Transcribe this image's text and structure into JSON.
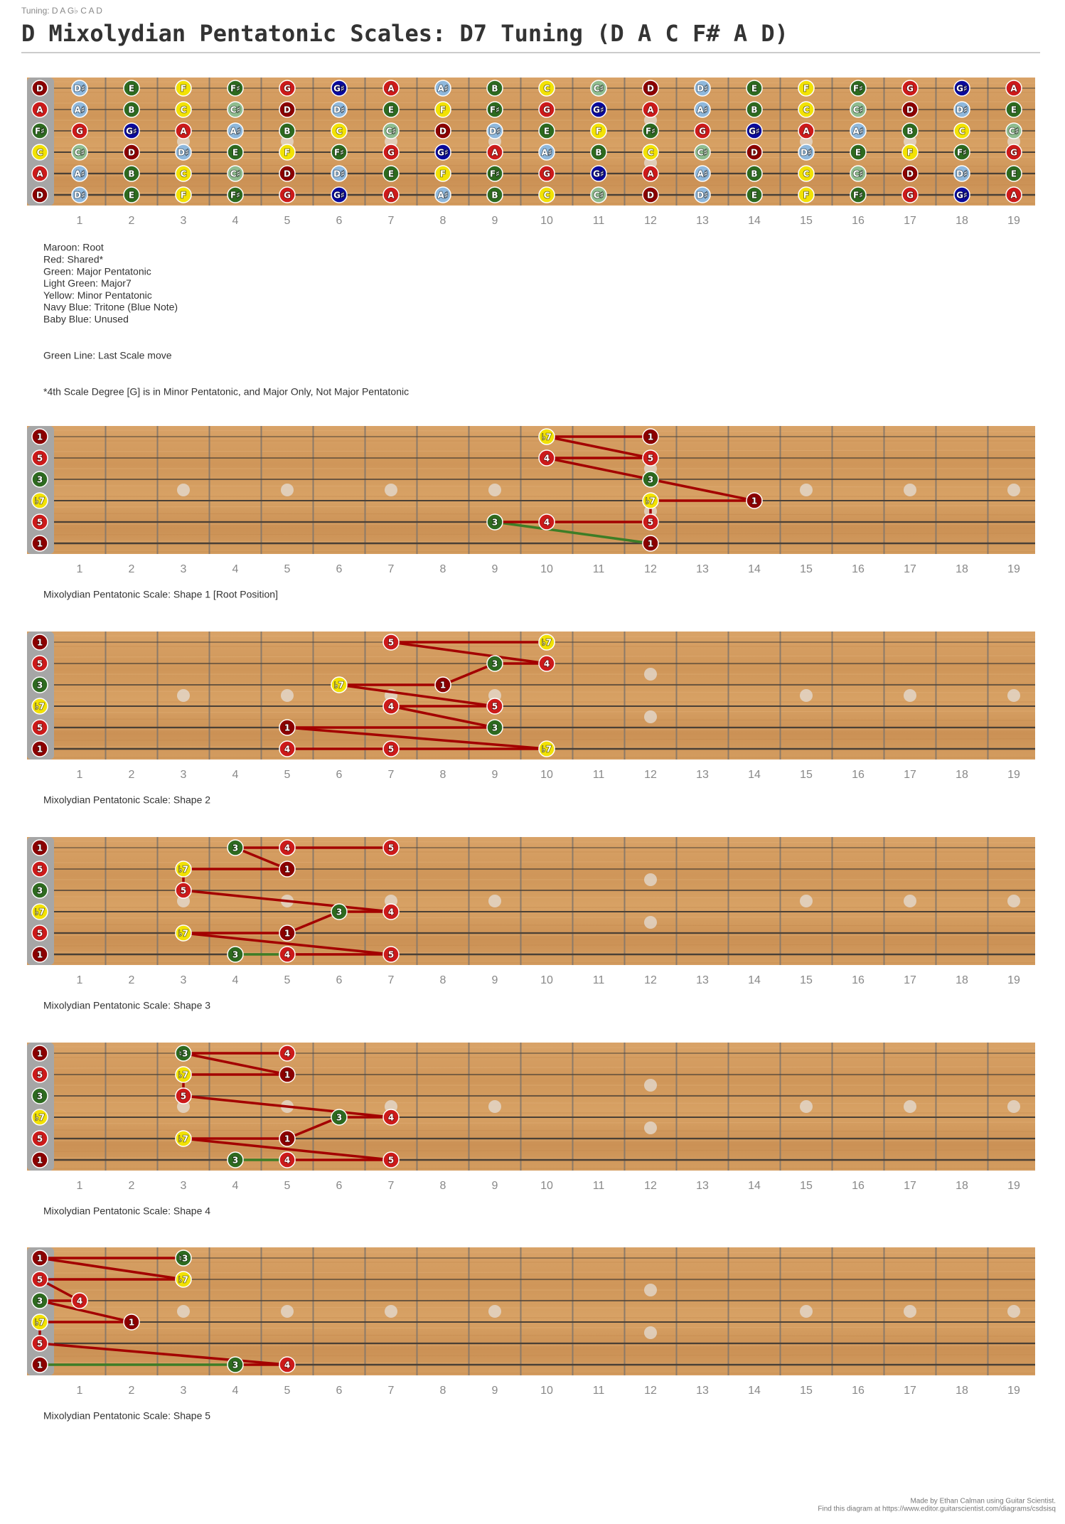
{
  "header": {
    "tuning": "Tuning: D A G♭ C A D",
    "title": "D Mixolydian Pentatonic Scales: D7 Tuning (D A C F# A D)"
  },
  "fret_numbers": [
    1,
    2,
    3,
    4,
    5,
    6,
    7,
    8,
    9,
    10,
    11,
    12,
    13,
    14,
    15,
    16,
    17,
    18,
    19
  ],
  "fretboard": {
    "strings": [
      [
        "D",
        "D♯",
        "E",
        "F",
        "F♯",
        "G",
        "G♯",
        "A",
        "A♯",
        "B",
        "C",
        "C♯",
        "D",
        "D♯",
        "E",
        "F",
        "F♯",
        "G",
        "G♯",
        "A"
      ],
      [
        "A",
        "A♯",
        "B",
        "C",
        "C♯",
        "D",
        "D♯",
        "E",
        "F",
        "F♯",
        "G",
        "G♯",
        "A",
        "A♯",
        "B",
        "C",
        "C♯",
        "D",
        "D♯",
        "E"
      ],
      [
        "F♯",
        "G",
        "G♯",
        "A",
        "A♯",
        "B",
        "C",
        "C♯",
        "D",
        "D♯",
        "E",
        "F",
        "F♯",
        "G",
        "G♯",
        "A",
        "A♯",
        "B",
        "C",
        "C♯"
      ],
      [
        "C",
        "C♯",
        "D",
        "D♯",
        "E",
        "F",
        "F♯",
        "G",
        "G♯",
        "A",
        "A♯",
        "B",
        "C",
        "C♯",
        "D",
        "D♯",
        "E",
        "F",
        "F♯",
        "G"
      ],
      [
        "A",
        "A♯",
        "B",
        "C",
        "C♯",
        "D",
        "D♯",
        "E",
        "F",
        "F♯",
        "G",
        "G♯",
        "A",
        "A♯",
        "B",
        "C",
        "C♯",
        "D",
        "D♯",
        "E"
      ],
      [
        "D",
        "D♯",
        "E",
        "F",
        "F♯",
        "G",
        "G♯",
        "A",
        "A♯",
        "B",
        "C",
        "C♯",
        "D",
        "D♯",
        "E",
        "F",
        "F♯",
        "G",
        "G♯",
        "A"
      ]
    ],
    "colors": {
      "D": "#8b0000",
      "A": "#cc1a1a",
      "G": "#cc1a1a",
      "E": "#2d6a1f",
      "B": "#2d6a1f",
      "F♯": "#2d6a1f",
      "C♯": "#8fbc8f",
      "C": "#f2e205",
      "F": "#f2e205",
      "G♯": "#0a0a9c",
      "D♯": "#8fb8dc",
      "A♯": "#8fb8dc"
    }
  },
  "legend": [
    "Maroon: Root",
    "Red: Shared*",
    "Green: Major Pentatonic",
    "Light Green: Major7",
    "Yellow: Minor Pentatonic",
    "Navy Blue: Tritone (Blue Note)",
    "Baby Blue: Unused"
  ],
  "green_line_note": "Green Line: Last Scale move",
  "footnote": "*4th Scale Degree [G] is in Minor Pentatonic, and Major Only, Not Major Pentatonic",
  "open_degrees": [
    "1",
    "5",
    "3",
    "♭7",
    "5",
    "1"
  ],
  "degree_colors": {
    "1": "#8b0000",
    "5": "#cc1a1a",
    "4": "#cc1a1a",
    "3": "#2d6a1f",
    "♮3": "#2d6a1f",
    "♭7": "#f2e205"
  },
  "line_colors": {
    "move": "#a30000",
    "last": "#3d7d26"
  },
  "shapes": [
    {
      "caption": "Mixolydian Pentatonic Scale: Shape 1 [Root Position]",
      "green_segments": [
        0
      ],
      "notes": [
        {
          "string": 5,
          "fret": 12,
          "label": "1"
        },
        {
          "string": 4,
          "fret": 9,
          "label": "3"
        },
        {
          "string": 4,
          "fret": 10,
          "label": "4"
        },
        {
          "string": 4,
          "fret": 12,
          "label": "5"
        },
        {
          "string": 3,
          "fret": 12,
          "label": "♭7"
        },
        {
          "string": 3,
          "fret": 14,
          "label": "1"
        },
        {
          "string": 2,
          "fret": 12,
          "label": "3"
        },
        {
          "string": 1,
          "fret": 10,
          "label": "4"
        },
        {
          "string": 1,
          "fret": 12,
          "label": "5"
        },
        {
          "string": 0,
          "fret": 10,
          "label": "♭7"
        },
        {
          "string": 0,
          "fret": 12,
          "label": "1"
        }
      ]
    },
    {
      "caption": "Mixolydian Pentatonic Scale: Shape 2",
      "green_segments": [],
      "notes": [
        {
          "string": 5,
          "fret": 5,
          "label": "4"
        },
        {
          "string": 5,
          "fret": 7,
          "label": "5"
        },
        {
          "string": 5,
          "fret": 10,
          "label": "♭7"
        },
        {
          "string": 4,
          "fret": 5,
          "label": "1"
        },
        {
          "string": 4,
          "fret": 9,
          "label": "3"
        },
        {
          "string": 3,
          "fret": 7,
          "label": "4"
        },
        {
          "string": 3,
          "fret": 9,
          "label": "5"
        },
        {
          "string": 2,
          "fret": 6,
          "label": "♭7"
        },
        {
          "string": 2,
          "fret": 8,
          "label": "1"
        },
        {
          "string": 1,
          "fret": 9,
          "label": "3"
        },
        {
          "string": 1,
          "fret": 10,
          "label": "4"
        },
        {
          "string": 0,
          "fret": 7,
          "label": "5"
        },
        {
          "string": 0,
          "fret": 10,
          "label": "♭7"
        }
      ]
    },
    {
      "caption": "Mixolydian Pentatonic Scale: Shape 3",
      "green_segments": [
        0
      ],
      "notes": [
        {
          "string": 5,
          "fret": 4,
          "label": "3"
        },
        {
          "string": 5,
          "fret": 5,
          "label": "4"
        },
        {
          "string": 5,
          "fret": 7,
          "label": "5"
        },
        {
          "string": 4,
          "fret": 3,
          "label": "♭7"
        },
        {
          "string": 4,
          "fret": 5,
          "label": "1"
        },
        {
          "string": 3,
          "fret": 6,
          "label": "3"
        },
        {
          "string": 3,
          "fret": 7,
          "label": "4"
        },
        {
          "string": 2,
          "fret": 3,
          "label": "5"
        },
        {
          "string": 1,
          "fret": 3,
          "label": "♭7"
        },
        {
          "string": 1,
          "fret": 5,
          "label": "1"
        },
        {
          "string": 0,
          "fret": 4,
          "label": "3"
        },
        {
          "string": 0,
          "fret": 5,
          "label": "4"
        },
        {
          "string": 0,
          "fret": 7,
          "label": "5"
        }
      ]
    },
    {
      "caption": "Mixolydian Pentatonic Scale: Shape 4",
      "green_segments": [
        0
      ],
      "notes": [
        {
          "string": 5,
          "fret": 4,
          "label": "3"
        },
        {
          "string": 5,
          "fret": 5,
          "label": "4"
        },
        {
          "string": 5,
          "fret": 7,
          "label": "5"
        },
        {
          "string": 4,
          "fret": 3,
          "label": "♭7"
        },
        {
          "string": 4,
          "fret": 5,
          "label": "1"
        },
        {
          "string": 3,
          "fret": 6,
          "label": "3"
        },
        {
          "string": 3,
          "fret": 7,
          "label": "4"
        },
        {
          "string": 2,
          "fret": 3,
          "label": "5"
        },
        {
          "string": 1,
          "fret": 3,
          "label": "♭7"
        },
        {
          "string": 1,
          "fret": 5,
          "label": "1"
        },
        {
          "string": 0,
          "fret": 3,
          "label": "♮3"
        },
        {
          "string": 0,
          "fret": 5,
          "label": "4"
        }
      ]
    },
    {
      "caption": "Mixolydian Pentatonic Scale: Shape 5",
      "green_segments": [
        0
      ],
      "notes": [
        {
          "string": 5,
          "fret": 0,
          "label": "1"
        },
        {
          "string": 5,
          "fret": 4,
          "label": "3"
        },
        {
          "string": 5,
          "fret": 5,
          "label": "4"
        },
        {
          "string": 4,
          "fret": 0,
          "label": "5"
        },
        {
          "string": 3,
          "fret": 0,
          "label": "♭7"
        },
        {
          "string": 3,
          "fret": 2,
          "label": "1"
        },
        {
          "string": 2,
          "fret": 0,
          "label": "3"
        },
        {
          "string": 2,
          "fret": 1,
          "label": "4"
        },
        {
          "string": 1,
          "fret": 0,
          "label": "5"
        },
        {
          "string": 1,
          "fret": 3,
          "label": "♭7"
        },
        {
          "string": 0,
          "fret": 0,
          "label": "1"
        },
        {
          "string": 0,
          "fret": 3,
          "label": "♮3"
        }
      ]
    }
  ],
  "footer": [
    "Made by Ethan Calman using Guitar Scientist.",
    "Find this diagram at https://www.editor.guitarscientist.com/diagrams/csdsisq"
  ]
}
